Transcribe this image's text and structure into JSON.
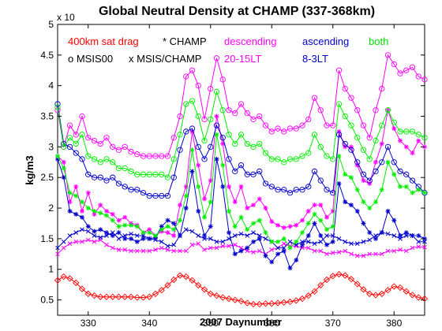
{
  "chart_data": {
    "type": "line",
    "title": "Global Neutral Density at CHAMP (337-368km)",
    "xlabel": "2007 Daynumber",
    "ylabel": "kg/m3",
    "y_exponent": "x 10",
    "xlim": [
      325,
      385
    ],
    "ylim": [
      0.25,
      5
    ],
    "xticks": [
      330,
      340,
      350,
      360,
      370,
      380
    ],
    "yticks": [
      0.5,
      1,
      1.5,
      2,
      2.5,
      3,
      3.5,
      4,
      4.5,
      5
    ],
    "grid": false,
    "legend_text": {
      "sat_drag": "400km sat drag",
      "champ": "* CHAMP",
      "descending": "descending",
      "ascending": "ascending",
      "both": "both",
      "msis00": "o MSIS00",
      "msis_champ": "x MSIS/CHAMP",
      "desc_lt": "20-15LT",
      "asc_lt": "8-3LT"
    },
    "x": [
      325,
      326,
      327,
      328,
      329,
      330,
      331,
      332,
      333,
      334,
      335,
      336,
      337,
      338,
      339,
      340,
      341,
      342,
      343,
      344,
      345,
      346,
      347,
      348,
      349,
      350,
      351,
      352,
      353,
      354,
      355,
      356,
      357,
      358,
      359,
      360,
      361,
      362,
      363,
      364,
      365,
      366,
      367,
      368,
      369,
      370,
      371,
      372,
      373,
      374,
      375,
      376,
      377,
      378,
      379,
      380,
      381,
      382,
      383,
      384,
      385
    ],
    "series": [
      {
        "name": "400km sat drag",
        "color": "#ff0000",
        "marker": "diamond",
        "values": [
          0.82,
          0.88,
          0.85,
          0.78,
          0.68,
          0.6,
          0.57,
          0.55,
          0.55,
          0.55,
          0.55,
          0.55,
          0.55,
          0.54,
          0.54,
          0.55,
          0.6,
          0.66,
          0.74,
          0.83,
          0.9,
          0.88,
          0.82,
          0.74,
          0.67,
          0.6,
          0.57,
          0.54,
          0.52,
          0.5,
          0.48,
          0.45,
          0.43,
          0.43,
          0.44,
          0.44,
          0.45,
          0.46,
          0.47,
          0.49,
          0.52,
          0.57,
          0.64,
          0.74,
          0.83,
          0.89,
          0.92,
          0.9,
          0.84,
          0.76,
          0.67,
          0.6,
          0.58,
          0.6,
          0.66,
          0.72,
          0.7,
          0.64,
          0.58,
          0.54,
          0.52
        ]
      },
      {
        "name": "descending CHAMP",
        "color": "#ff00ff",
        "marker": "star",
        "values": [
          2.85,
          2.75,
          2.1,
          2.35,
          1.95,
          2.25,
          1.9,
          2.05,
          1.95,
          1.9,
          1.8,
          1.85,
          1.75,
          1.72,
          1.6,
          1.65,
          1.55,
          1.62,
          1.6,
          1.55,
          2.05,
          2.35,
          3.25,
          2.7,
          2.15,
          2.45,
          3.5,
          3.05,
          2.35,
          2.1,
          2.35,
          2.0,
          2.05,
          2.15,
          2.0,
          1.78,
          1.72,
          1.68,
          1.7,
          1.72,
          1.8,
          1.95,
          2.05,
          2.05,
          1.85,
          1.95,
          3.25,
          3.0,
          3.0,
          2.7,
          2.45,
          2.4,
          2.75,
          3.05,
          3.6,
          3.3,
          3.1,
          3.0,
          2.9,
          3.1,
          3.0
        ]
      },
      {
        "name": "descending MSIS00",
        "color": "#ff00ff",
        "marker": "circle",
        "values": [
          3.6,
          3.0,
          3.35,
          3.2,
          3.5,
          3.15,
          3.1,
          3.05,
          3.15,
          3.0,
          2.95,
          3.0,
          2.92,
          2.88,
          2.85,
          2.85,
          2.85,
          2.85,
          2.85,
          3.15,
          3.5,
          4.15,
          4.25,
          4.0,
          3.45,
          3.95,
          4.45,
          4.1,
          3.6,
          3.55,
          3.7,
          3.55,
          3.45,
          3.5,
          3.35,
          3.25,
          3.3,
          3.25,
          3.3,
          3.3,
          3.35,
          3.45,
          3.8,
          3.6,
          3.35,
          3.35,
          4.25,
          3.95,
          3.8,
          3.6,
          3.35,
          3.15,
          3.6,
          3.95,
          4.5,
          4.35,
          4.2,
          4.25,
          4.3,
          4.15,
          4.1
        ]
      },
      {
        "name": "descending MSIS/CHAMP",
        "color": "#ff00ff",
        "marker": "x",
        "values": [
          1.25,
          1.35,
          1.42,
          1.45,
          1.45,
          1.48,
          1.45,
          1.48,
          1.4,
          1.35,
          1.32,
          1.32,
          1.3,
          1.3,
          1.3,
          1.3,
          1.32,
          1.35,
          1.32,
          1.3,
          1.3,
          1.3,
          1.4,
          1.42,
          1.32,
          1.35,
          1.35,
          1.38,
          1.38,
          1.4,
          1.35,
          1.3,
          1.28,
          1.3,
          1.25,
          1.32,
          1.35,
          1.42,
          1.38,
          1.38,
          1.35,
          1.35,
          1.3,
          1.3,
          1.25,
          1.27,
          1.28,
          1.3,
          1.25,
          1.22,
          1.22,
          1.25,
          1.25,
          1.25,
          1.3,
          1.3,
          1.32,
          1.3,
          1.35,
          1.37,
          1.36
        ]
      },
      {
        "name": "ascending CHAMP",
        "color": "#0000cc",
        "marker": "star",
        "values": [
          2.8,
          2.5,
          1.95,
          1.9,
          1.85,
          1.7,
          1.62,
          1.65,
          1.6,
          1.55,
          1.6,
          1.5,
          1.5,
          1.45,
          1.5,
          1.5,
          1.52,
          1.7,
          1.8,
          1.75,
          1.55,
          2.0,
          2.6,
          1.95,
          1.55,
          1.7,
          2.8,
          2.35,
          1.6,
          1.25,
          1.3,
          1.35,
          1.45,
          1.5,
          1.22,
          1.12,
          1.25,
          1.3,
          1.02,
          1.15,
          1.4,
          1.55,
          1.75,
          1.55,
          1.4,
          1.45,
          2.4,
          2.1,
          2.05,
          1.95,
          1.75,
          1.6,
          1.5,
          1.6,
          1.95,
          1.8,
          1.55,
          1.6,
          1.55,
          1.55,
          1.5
        ]
      },
      {
        "name": "ascending MSIS00",
        "color": "#0000cc",
        "marker": "circle",
        "values": [
          3.7,
          3.05,
          3.0,
          2.9,
          2.8,
          2.55,
          2.5,
          2.5,
          2.45,
          2.5,
          2.4,
          2.35,
          2.3,
          2.3,
          2.25,
          2.2,
          2.2,
          2.2,
          2.2,
          2.5,
          2.95,
          3.25,
          3.3,
          3.0,
          2.8,
          3.0,
          3.35,
          3.15,
          2.8,
          2.6,
          2.7,
          2.55,
          2.55,
          2.6,
          2.4,
          2.35,
          2.3,
          2.3,
          2.25,
          2.3,
          2.3,
          2.35,
          2.6,
          2.45,
          2.3,
          2.25,
          3.2,
          3.05,
          2.95,
          2.75,
          2.55,
          2.45,
          2.6,
          2.75,
          3.0,
          2.75,
          2.6,
          2.55,
          2.45,
          2.35,
          2.25
        ]
      },
      {
        "name": "ascending MSIS/CHAMP",
        "color": "#0000cc",
        "marker": "x",
        "values": [
          1.35,
          1.45,
          1.55,
          1.6,
          1.65,
          1.62,
          1.55,
          1.52,
          1.55,
          1.6,
          1.5,
          1.55,
          1.58,
          1.55,
          1.55,
          1.5,
          1.48,
          1.45,
          1.38,
          1.4,
          1.55,
          1.65,
          1.62,
          1.55,
          1.5,
          1.5,
          1.45,
          1.45,
          1.5,
          1.55,
          1.58,
          1.55,
          1.6,
          1.55,
          1.5,
          1.45,
          1.35,
          1.35,
          1.45,
          1.4,
          1.45,
          1.45,
          1.42,
          1.45,
          1.55,
          1.55,
          1.5,
          1.45,
          1.42,
          1.42,
          1.45,
          1.48,
          1.55,
          1.6,
          1.58,
          1.55,
          1.5,
          1.55,
          1.55,
          1.45,
          1.45
        ]
      },
      {
        "name": "both CHAMP",
        "color": "#00ee00",
        "marker": "star",
        "values": [
          2.85,
          2.65,
          2.25,
          2.2,
          2.1,
          2.0,
          1.95,
          1.92,
          1.88,
          1.8,
          1.7,
          1.72,
          1.72,
          1.7,
          1.6,
          1.6,
          1.55,
          1.65,
          1.7,
          1.65,
          1.8,
          2.2,
          2.95,
          2.35,
          1.85,
          2.1,
          3.2,
          2.7,
          1.95,
          1.7,
          1.85,
          1.65,
          1.75,
          1.8,
          1.6,
          1.45,
          1.45,
          1.5,
          1.35,
          1.45,
          1.6,
          1.75,
          1.9,
          1.8,
          1.65,
          1.7,
          2.85,
          2.55,
          2.5,
          2.3,
          2.1,
          2.0,
          2.1,
          2.3,
          2.75,
          2.55,
          2.35,
          2.35,
          2.25,
          2.3,
          2.25
        ]
      },
      {
        "name": "both MSIS00",
        "color": "#00ee00",
        "marker": "circle",
        "values": [
          3.65,
          3.0,
          3.15,
          3.05,
          3.2,
          2.85,
          2.8,
          2.75,
          2.8,
          2.75,
          2.65,
          2.65,
          2.6,
          2.55,
          2.55,
          2.55,
          2.55,
          2.55,
          2.5,
          2.8,
          3.2,
          3.7,
          3.75,
          3.5,
          3.1,
          3.45,
          3.9,
          3.6,
          3.2,
          3.05,
          3.2,
          3.05,
          3.0,
          3.05,
          2.9,
          2.8,
          2.8,
          2.75,
          2.8,
          2.8,
          2.85,
          2.9,
          3.2,
          3.0,
          2.85,
          2.8,
          3.7,
          3.5,
          3.35,
          3.15,
          2.95,
          2.8,
          3.1,
          3.35,
          3.6,
          3.4,
          3.25,
          3.25,
          3.25,
          3.2,
          3.15
        ]
      }
    ]
  }
}
